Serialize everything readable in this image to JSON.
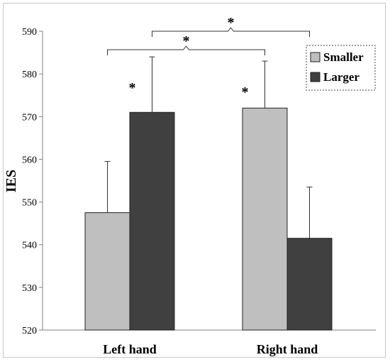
{
  "chart_data": {
    "type": "bar",
    "title": "",
    "xlabel": "",
    "ylabel": "IES",
    "ylim": [
      520,
      590
    ],
    "yticks": [
      520,
      530,
      540,
      550,
      560,
      570,
      580,
      590
    ],
    "grid": false,
    "legend_position": "top-right",
    "categories": [
      "Left hand",
      "Right hand"
    ],
    "series": [
      {
        "name": "Smaller",
        "color": "#bfbfbf",
        "values": [
          547.5,
          572
        ],
        "error_upper": [
          12,
          11
        ]
      },
      {
        "name": "Larger",
        "color": "#404040",
        "values": [
          571,
          541.5
        ],
        "error_upper": [
          13,
          12
        ]
      }
    ],
    "bar_annotations": [
      {
        "category": 0,
        "series": 1,
        "label": "*"
      },
      {
        "category": 1,
        "series": 0,
        "label": "*"
      }
    ],
    "brackets": [
      {
        "from": {
          "category": 0,
          "series": 1
        },
        "to": {
          "category": 1,
          "series": 1
        },
        "label": "*"
      },
      {
        "from": {
          "category": 0,
          "series": 0
        },
        "to": {
          "category": 1,
          "series": 0
        },
        "label": "*"
      }
    ]
  }
}
